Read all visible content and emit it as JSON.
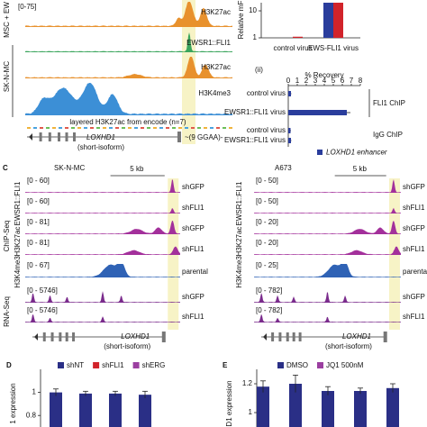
{
  "panel_top": {
    "sample_labels": [
      "MSC + EW",
      "SK-N-MC"
    ],
    "scale": "[0-75]",
    "tracks": [
      {
        "label": "H3K27ac",
        "color": "#e8912d"
      },
      {
        "label": "EWSR1::FLI1",
        "color": "#3aa55c"
      },
      {
        "label": "H3K27ac",
        "color": "#e8912d"
      },
      {
        "label": "H3K4me3",
        "color": "#3c8fd6"
      }
    ],
    "layered": "layered H3K27ac from encode (n=7)",
    "gene": "LOXHD1",
    "isoform": "(short-isoform)",
    "motif": "~(9 GGAA)-"
  },
  "panel_c": {
    "panel": "C",
    "assays": [
      "ChIP-Seq",
      "RNA-Seq"
    ],
    "marks": [
      "EWSR1::FLI1",
      "H3K27ac",
      "H3K4me3"
    ],
    "gene": "LOXHD1",
    "isoform": "(short-isoform)",
    "samples": [
      {
        "title": "SK-N-MC",
        "scale_bar": "5 kb",
        "tracks": [
          {
            "range": "[0 - 60]",
            "label": "shGFP"
          },
          {
            "range": "[0 - 60]",
            "label": "shFLI1"
          },
          {
            "range": "[0 - 81]",
            "label": "shGFP"
          },
          {
            "range": "[0 - 81]",
            "label": "shFLI1"
          },
          {
            "range": "[0 - 67]",
            "label": "parental"
          },
          {
            "range": "[0 - 5746]",
            "label": "shGFP"
          },
          {
            "range": "[0 - 5746]",
            "label": "shFLI1"
          }
        ]
      },
      {
        "title": "A673",
        "scale_bar": "5 kb",
        "tracks": [
          {
            "range": "[0 - 50]",
            "label": "shGFP"
          },
          {
            "range": "[0 - 50]",
            "label": "shFLI1"
          },
          {
            "range": "[0 - 20]",
            "label": "shGFP"
          },
          {
            "range": "[0 - 20]",
            "label": "shFLI1"
          },
          {
            "range": "[0 - 25]",
            "label": "parental"
          },
          {
            "range": "[0 - 782]",
            "label": "shGFP"
          },
          {
            "range": "[0 - 782]",
            "label": "shFLI1"
          }
        ]
      }
    ]
  },
  "chart_data": [
    {
      "type": "bar",
      "ylabel": "Relative mF",
      "log_scale": true,
      "categories": [
        "control virus",
        "EWS-FLI1 virus"
      ],
      "series": [
        {
          "color": "#2a3d9c",
          "values": [
            1,
            20
          ]
        },
        {
          "color": "#d1232a",
          "values": [
            1.1,
            20
          ]
        }
      ],
      "ylim": [
        1,
        20
      ],
      "yticks": [
        1,
        10
      ]
    },
    {
      "type": "hbar",
      "panel": "(ii)",
      "xlabel": "% Recovery",
      "categories": [
        "control virus",
        "EWSR1::FLI1 virus",
        "control virus",
        "EWSR1::FLI1 virus"
      ],
      "groups": [
        "FLI1 ChIP",
        "IgG ChIP"
      ],
      "series": [
        {
          "name": "LOXHD1 enhancer",
          "color": "#2a3d9c",
          "values": [
            0.3,
            6.5,
            0.25,
            0.3
          ],
          "errors": [
            0.05,
            0.4,
            0.05,
            0.05
          ]
        }
      ],
      "xlim": [
        0,
        8
      ],
      "xticks": [
        0,
        1,
        2,
        3,
        4,
        5,
        6,
        7,
        8
      ]
    },
    {
      "type": "bar",
      "panel": "D",
      "ylabel": "1 expression",
      "series": [
        {
          "name": "shNT",
          "color": "#2a2f86",
          "values": [
            1,
            0.99,
            0.99,
            0.98
          ],
          "errors": [
            0.03,
            0.02,
            0.02,
            0.03
          ]
        },
        {
          "name": "shFLI1",
          "color": "#d1232a"
        },
        {
          "name": "shERG",
          "color": "#9b3fa0"
        }
      ],
      "ylim": [
        0.7,
        1.2
      ],
      "yticks": [
        0.8,
        1
      ]
    },
    {
      "type": "bar",
      "panel": "E",
      "ylabel": "D1 expression",
      "series": [
        {
          "name": "DMSO",
          "color": "#2a2f86",
          "values": [
            1.18,
            1.2,
            1.15,
            1.15,
            1.17
          ],
          "errors": [
            0.04,
            0.06,
            0.03,
            0.02,
            0.03
          ]
        },
        {
          "name": "JQ1 500nM",
          "color": "#9b3fa0"
        }
      ],
      "ylim": [
        0.9,
        1.3
      ],
      "yticks": [
        1,
        1.2
      ]
    }
  ]
}
